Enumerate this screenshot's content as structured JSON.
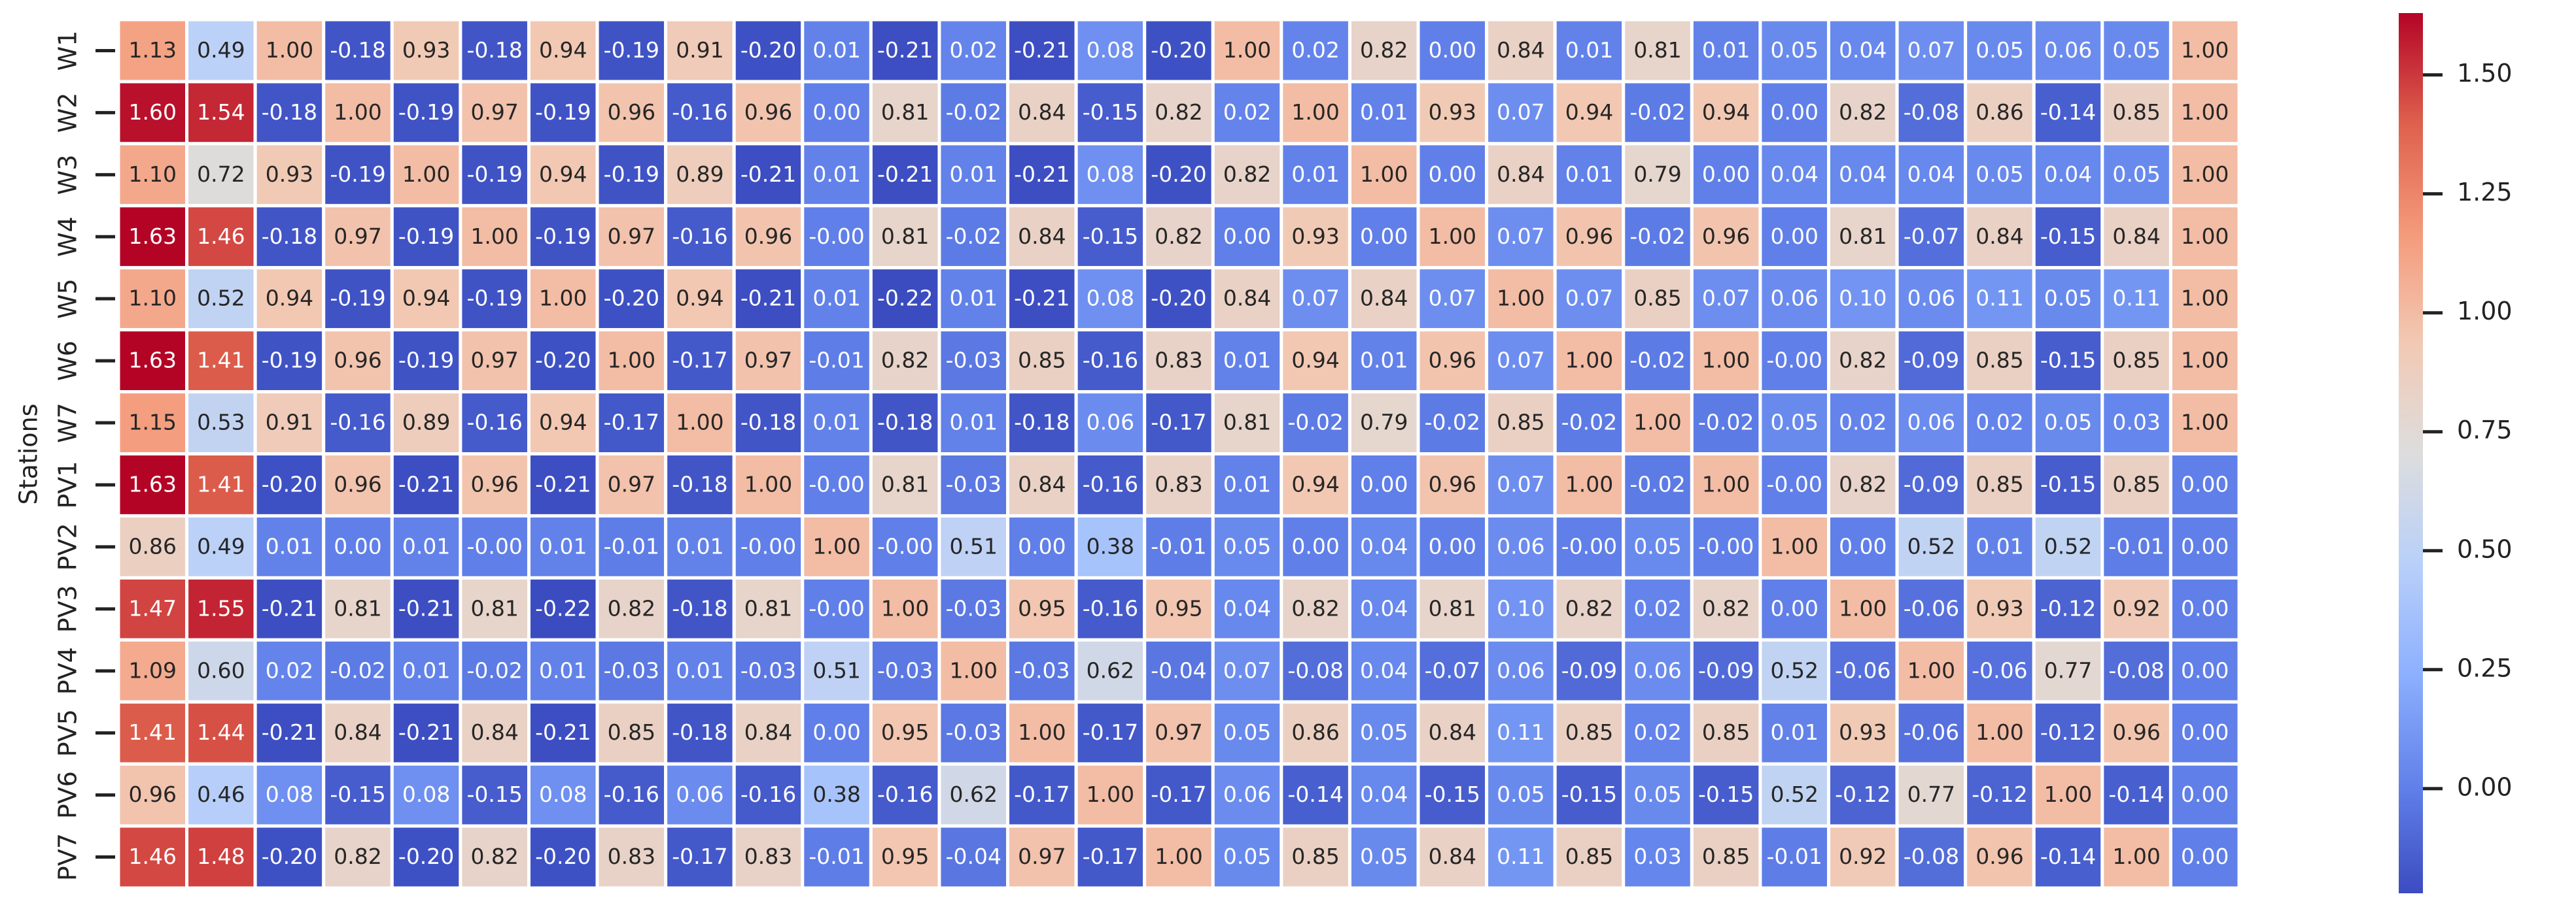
{
  "chart_data": {
    "type": "heatmap",
    "ylabel": "Stations",
    "rows": [
      "W1",
      "W2",
      "W3",
      "W4",
      "W5",
      "W6",
      "W7",
      "PV1",
      "PV2",
      "PV3",
      "PV4",
      "PV5",
      "PV6",
      "PV7"
    ],
    "values": [
      [
        1.13,
        0.49,
        1,
        -0.18,
        0.93,
        -0.18,
        0.94,
        -0.19,
        0.91,
        -0.2,
        0.01,
        -0.21,
        0.02,
        -0.21,
        0.08,
        -0.2,
        1,
        0.02,
        0.82,
        0,
        0.84,
        0.01,
        0.81,
        0.01,
        0.05,
        0.04,
        0.07,
        0.05,
        0.06,
        0.05,
        1
      ],
      [
        1.6,
        1.54,
        -0.18,
        1,
        -0.19,
        0.97,
        -0.19,
        0.96,
        -0.16,
        0.96,
        0,
        0.81,
        -0.02,
        0.84,
        -0.15,
        0.82,
        0.02,
        1,
        0.01,
        0.93,
        0.07,
        0.94,
        -0.02,
        0.94,
        0,
        0.82,
        -0.08,
        0.86,
        -0.14,
        0.85,
        1
      ],
      [
        1.1,
        0.72,
        0.93,
        -0.19,
        1,
        -0.19,
        0.94,
        -0.19,
        0.89,
        -0.21,
        0.01,
        -0.21,
        0.01,
        -0.21,
        0.08,
        -0.2,
        0.82,
        0.01,
        1,
        0,
        0.84,
        0.01,
        0.79,
        0,
        0.04,
        0.04,
        0.04,
        0.05,
        0.04,
        0.05,
        1
      ],
      [
        1.63,
        1.46,
        -0.18,
        0.97,
        -0.19,
        1,
        -0.19,
        0.97,
        -0.16,
        0.96,
        0,
        0.81,
        -0.02,
        0.84,
        -0.15,
        0.82,
        0,
        0.93,
        0,
        1,
        0.07,
        0.96,
        -0.02,
        0.96,
        0,
        0.81,
        -0.07,
        0.84,
        -0.15,
        0.84,
        1
      ],
      [
        1.1,
        0.52,
        0.94,
        -0.19,
        0.94,
        -0.19,
        1,
        -0.2,
        0.94,
        -0.21,
        0.01,
        -0.22,
        0.01,
        -0.21,
        0.08,
        -0.2,
        0.84,
        0.07,
        0.84,
        0.07,
        1,
        0.07,
        0.85,
        0.07,
        0.06,
        0.1,
        0.06,
        0.11,
        0.05,
        0.11,
        1
      ],
      [
        1.63,
        1.41,
        -0.19,
        0.96,
        -0.19,
        0.97,
        -0.2,
        1,
        -0.17,
        0.97,
        -0.01,
        0.82,
        -0.03,
        0.85,
        -0.16,
        0.83,
        0.01,
        0.94,
        0.01,
        0.96,
        0.07,
        1,
        -0.02,
        1,
        0,
        0.82,
        -0.09,
        0.85,
        -0.15,
        0.85,
        1
      ],
      [
        1.15,
        0.53,
        0.91,
        -0.16,
        0.89,
        -0.16,
        0.94,
        -0.17,
        1,
        -0.18,
        0.01,
        -0.18,
        0.01,
        -0.18,
        0.06,
        -0.17,
        0.81,
        -0.02,
        0.79,
        -0.02,
        0.85,
        -0.02,
        1,
        -0.02,
        0.05,
        0.02,
        0.06,
        0.02,
        0.05,
        0.03,
        1
      ],
      [
        1.63,
        1.41,
        -0.2,
        0.96,
        -0.21,
        0.96,
        -0.21,
        0.97,
        -0.18,
        1,
        0,
        0.81,
        -0.03,
        0.84,
        -0.16,
        0.83,
        0.01,
        0.94,
        0,
        0.96,
        0.07,
        1,
        -0.02,
        1,
        0,
        0.82,
        -0.09,
        0.85,
        -0.15,
        0.85,
        0
      ],
      [
        0.86,
        0.49,
        0.01,
        0,
        0.01,
        0,
        0.01,
        -0.01,
        0.01,
        0,
        1,
        0,
        0.51,
        0,
        0.38,
        -0.01,
        0.05,
        0,
        0.04,
        0,
        0.06,
        0,
        0.05,
        0,
        1,
        0,
        0.52,
        0.01,
        0.52,
        -0.01,
        0
      ],
      [
        1.47,
        1.55,
        -0.21,
        0.81,
        -0.21,
        0.81,
        -0.22,
        0.82,
        -0.18,
        0.81,
        0,
        1,
        -0.03,
        0.95,
        -0.16,
        0.95,
        0.04,
        0.82,
        0.04,
        0.81,
        0.1,
        0.82,
        0.02,
        0.82,
        0,
        1,
        -0.06,
        0.93,
        -0.12,
        0.92,
        0
      ],
      [
        1.09,
        0.6,
        0.02,
        -0.02,
        0.01,
        -0.02,
        0.01,
        -0.03,
        0.01,
        -0.03,
        0.51,
        -0.03,
        1,
        -0.03,
        0.62,
        -0.04,
        0.07,
        -0.08,
        0.04,
        -0.07,
        0.06,
        -0.09,
        0.06,
        -0.09,
        0.52,
        -0.06,
        1,
        -0.06,
        0.77,
        -0.08,
        0
      ],
      [
        1.41,
        1.44,
        -0.21,
        0.84,
        -0.21,
        0.84,
        -0.21,
        0.85,
        -0.18,
        0.84,
        0,
        0.95,
        -0.03,
        1,
        -0.17,
        0.97,
        0.05,
        0.86,
        0.05,
        0.84,
        0.11,
        0.85,
        0.02,
        0.85,
        0.01,
        0.93,
        -0.06,
        1,
        -0.12,
        0.96,
        0
      ],
      [
        0.96,
        0.46,
        0.08,
        -0.15,
        0.08,
        -0.15,
        0.08,
        -0.16,
        0.06,
        -0.16,
        0.38,
        -0.16,
        0.62,
        -0.17,
        1,
        -0.17,
        0.06,
        -0.14,
        0.04,
        -0.15,
        0.05,
        -0.15,
        0.05,
        -0.15,
        0.52,
        -0.12,
        0.77,
        -0.12,
        1,
        -0.14,
        0
      ],
      [
        1.46,
        1.48,
        -0.2,
        0.82,
        -0.2,
        0.82,
        -0.2,
        0.83,
        -0.17,
        0.83,
        -0.01,
        0.95,
        -0.04,
        0.97,
        -0.17,
        1,
        0.05,
        0.85,
        0.05,
        0.84,
        0.11,
        0.85,
        0.03,
        0.85,
        -0.01,
        0.92,
        -0.08,
        0.96,
        -0.14,
        1,
        0
      ]
    ],
    "value_labels": [
      [
        "1.13",
        "0.49",
        "1.00",
        "-0.18",
        "0.93",
        "-0.18",
        "0.94",
        "-0.19",
        "0.91",
        "-0.20",
        "0.01",
        "-0.21",
        "0.02",
        "-0.21",
        "0.08",
        "-0.20",
        "1.00",
        "0.02",
        "0.82",
        "0.00",
        "0.84",
        "0.01",
        "0.81",
        "0.01",
        "0.05",
        "0.04",
        "0.07",
        "0.05",
        "0.06",
        "0.05",
        "1.00"
      ],
      [
        "1.60",
        "1.54",
        "-0.18",
        "1.00",
        "-0.19",
        "0.97",
        "-0.19",
        "0.96",
        "-0.16",
        "0.96",
        "0.00",
        "0.81",
        "-0.02",
        "0.84",
        "-0.15",
        "0.82",
        "0.02",
        "1.00",
        "0.01",
        "0.93",
        "0.07",
        "0.94",
        "-0.02",
        "0.94",
        "0.00",
        "0.82",
        "-0.08",
        "0.86",
        "-0.14",
        "0.85",
        "1.00"
      ],
      [
        "1.10",
        "0.72",
        "0.93",
        "-0.19",
        "1.00",
        "-0.19",
        "0.94",
        "-0.19",
        "0.89",
        "-0.21",
        "0.01",
        "-0.21",
        "0.01",
        "-0.21",
        "0.08",
        "-0.20",
        "0.82",
        "0.01",
        "1.00",
        "0.00",
        "0.84",
        "0.01",
        "0.79",
        "0.00",
        "0.04",
        "0.04",
        "0.04",
        "0.05",
        "0.04",
        "0.05",
        "1.00"
      ],
      [
        "1.63",
        "1.46",
        "-0.18",
        "0.97",
        "-0.19",
        "1.00",
        "-0.19",
        "0.97",
        "-0.16",
        "0.96",
        "-0.00",
        "0.81",
        "-0.02",
        "0.84",
        "-0.15",
        "0.82",
        "0.00",
        "0.93",
        "0.00",
        "1.00",
        "0.07",
        "0.96",
        "-0.02",
        "0.96",
        "0.00",
        "0.81",
        "-0.07",
        "0.84",
        "-0.15",
        "0.84",
        "1.00"
      ],
      [
        "1.10",
        "0.52",
        "0.94",
        "-0.19",
        "0.94",
        "-0.19",
        "1.00",
        "-0.20",
        "0.94",
        "-0.21",
        "0.01",
        "-0.22",
        "0.01",
        "-0.21",
        "0.08",
        "-0.20",
        "0.84",
        "0.07",
        "0.84",
        "0.07",
        "1.00",
        "0.07",
        "0.85",
        "0.07",
        "0.06",
        "0.10",
        "0.06",
        "0.11",
        "0.05",
        "0.11",
        "1.00"
      ],
      [
        "1.63",
        "1.41",
        "-0.19",
        "0.96",
        "-0.19",
        "0.97",
        "-0.20",
        "1.00",
        "-0.17",
        "0.97",
        "-0.01",
        "0.82",
        "-0.03",
        "0.85",
        "-0.16",
        "0.83",
        "0.01",
        "0.94",
        "0.01",
        "0.96",
        "0.07",
        "1.00",
        "-0.02",
        "1.00",
        "-0.00",
        "0.82",
        "-0.09",
        "0.85",
        "-0.15",
        "0.85",
        "1.00"
      ],
      [
        "1.15",
        "0.53",
        "0.91",
        "-0.16",
        "0.89",
        "-0.16",
        "0.94",
        "-0.17",
        "1.00",
        "-0.18",
        "0.01",
        "-0.18",
        "0.01",
        "-0.18",
        "0.06",
        "-0.17",
        "0.81",
        "-0.02",
        "0.79",
        "-0.02",
        "0.85",
        "-0.02",
        "1.00",
        "-0.02",
        "0.05",
        "0.02",
        "0.06",
        "0.02",
        "0.05",
        "0.03",
        "1.00"
      ],
      [
        "1.63",
        "1.41",
        "-0.20",
        "0.96",
        "-0.21",
        "0.96",
        "-0.21",
        "0.97",
        "-0.18",
        "1.00",
        "-0.00",
        "0.81",
        "-0.03",
        "0.84",
        "-0.16",
        "0.83",
        "0.01",
        "0.94",
        "0.00",
        "0.96",
        "0.07",
        "1.00",
        "-0.02",
        "1.00",
        "-0.00",
        "0.82",
        "-0.09",
        "0.85",
        "-0.15",
        "0.85",
        "0.00"
      ],
      [
        "0.86",
        "0.49",
        "0.01",
        "0.00",
        "0.01",
        "-0.00",
        "0.01",
        "-0.01",
        "0.01",
        "-0.00",
        "1.00",
        "-0.00",
        "0.51",
        "0.00",
        "0.38",
        "-0.01",
        "0.05",
        "0.00",
        "0.04",
        "0.00",
        "0.06",
        "-0.00",
        "0.05",
        "-0.00",
        "1.00",
        "0.00",
        "0.52",
        "0.01",
        "0.52",
        "-0.01",
        "0.00"
      ],
      [
        "1.47",
        "1.55",
        "-0.21",
        "0.81",
        "-0.21",
        "0.81",
        "-0.22",
        "0.82",
        "-0.18",
        "0.81",
        "-0.00",
        "1.00",
        "-0.03",
        "0.95",
        "-0.16",
        "0.95",
        "0.04",
        "0.82",
        "0.04",
        "0.81",
        "0.10",
        "0.82",
        "0.02",
        "0.82",
        "0.00",
        "1.00",
        "-0.06",
        "0.93",
        "-0.12",
        "0.92",
        "0.00"
      ],
      [
        "1.09",
        "0.60",
        "0.02",
        "-0.02",
        "0.01",
        "-0.02",
        "0.01",
        "-0.03",
        "0.01",
        "-0.03",
        "0.51",
        "-0.03",
        "1.00",
        "-0.03",
        "0.62",
        "-0.04",
        "0.07",
        "-0.08",
        "0.04",
        "-0.07",
        "0.06",
        "-0.09",
        "0.06",
        "-0.09",
        "0.52",
        "-0.06",
        "1.00",
        "-0.06",
        "0.77",
        "-0.08",
        "0.00"
      ],
      [
        "1.41",
        "1.44",
        "-0.21",
        "0.84",
        "-0.21",
        "0.84",
        "-0.21",
        "0.85",
        "-0.18",
        "0.84",
        "0.00",
        "0.95",
        "-0.03",
        "1.00",
        "-0.17",
        "0.97",
        "0.05",
        "0.86",
        "0.05",
        "0.84",
        "0.11",
        "0.85",
        "0.02",
        "0.85",
        "0.01",
        "0.93",
        "-0.06",
        "1.00",
        "-0.12",
        "0.96",
        "0.00"
      ],
      [
        "0.96",
        "0.46",
        "0.08",
        "-0.15",
        "0.08",
        "-0.15",
        "0.08",
        "-0.16",
        "0.06",
        "-0.16",
        "0.38",
        "-0.16",
        "0.62",
        "-0.17",
        "1.00",
        "-0.17",
        "0.06",
        "-0.14",
        "0.04",
        "-0.15",
        "0.05",
        "-0.15",
        "0.05",
        "-0.15",
        "0.52",
        "-0.12",
        "0.77",
        "-0.12",
        "1.00",
        "-0.14",
        "0.00"
      ],
      [
        "1.46",
        "1.48",
        "-0.20",
        "0.82",
        "-0.20",
        "0.82",
        "-0.20",
        "0.83",
        "-0.17",
        "0.83",
        "-0.01",
        "0.95",
        "-0.04",
        "0.97",
        "-0.17",
        "1.00",
        "0.05",
        "0.85",
        "0.05",
        "0.84",
        "0.11",
        "0.85",
        "0.03",
        "0.85",
        "-0.01",
        "0.92",
        "-0.08",
        "0.96",
        "-0.14",
        "1.00",
        "0.00"
      ]
    ],
    "colorscale": [
      "#3b4cc0",
      "#6282ea",
      "#8db0fe",
      "#b9d0f9",
      "#dddddd",
      "#f2c9b4",
      "#f49a7b",
      "#de604d",
      "#b40426"
    ],
    "clim": [
      -0.22,
      1.63
    ],
    "cticks": [
      {
        "value": 0,
        "label": "0.00"
      },
      {
        "value": 0.25,
        "label": "0.25"
      },
      {
        "value": 0.5,
        "label": "0.50"
      },
      {
        "value": 0.75,
        "label": "0.75"
      },
      {
        "value": 1,
        "label": "1.00"
      },
      {
        "value": 1.25,
        "label": "1.25"
      },
      {
        "value": 1.5,
        "label": "1.50"
      }
    ]
  }
}
